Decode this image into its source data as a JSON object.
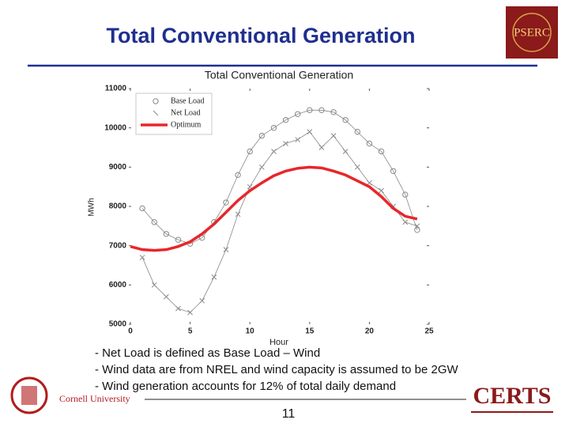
{
  "slide": {
    "title": "Total Conventional Generation",
    "bullets": [
      "- Net Load is defined as Base Load – Wind",
      "- Wind data are from NREL and wind capacity is assumed to be 2GW",
      "- Wind generation accounts for 12% of total daily demand"
    ],
    "page_number": "11",
    "logos": {
      "pserc": "PSERC",
      "cornell": "Cornell University",
      "certs": "CERTS"
    }
  },
  "chart_data": {
    "type": "line",
    "title": "Total Conventional Generation",
    "x_label": "Hour",
    "y_label": "MWh",
    "x": [
      0,
      1,
      2,
      3,
      4,
      5,
      6,
      7,
      8,
      9,
      10,
      11,
      12,
      13,
      14,
      15,
      16,
      17,
      18,
      19,
      20,
      21,
      22,
      23,
      24
    ],
    "xlim": [
      0,
      25
    ],
    "xticks": [
      0,
      5,
      10,
      15,
      20,
      25
    ],
    "ylim": [
      5000,
      11000
    ],
    "yticks": [
      5000,
      6000,
      7000,
      8000,
      9000,
      10000,
      11000
    ],
    "legend": "upper left",
    "series": [
      {
        "name": "Base Load",
        "color": "#888888",
        "marker": "circle",
        "values": [
          null,
          7950,
          7600,
          7300,
          7150,
          7050,
          7200,
          7600,
          8100,
          8800,
          9400,
          9800,
          10000,
          10200,
          10350,
          10450,
          10450,
          10400,
          10200,
          9900,
          9600,
          9400,
          8900,
          8300,
          7400
        ]
      },
      {
        "name": "Net Load",
        "color": "#888888",
        "marker": "x",
        "values": [
          null,
          6700,
          6000,
          5700,
          5400,
          5300,
          5600,
          6200,
          6900,
          7800,
          8500,
          9000,
          9400,
          9600,
          9700,
          9900,
          9500,
          9800,
          9400,
          9000,
          8600,
          8400,
          8000,
          7600,
          7500
        ]
      },
      {
        "name": "Optimum",
        "color": "#e8262a",
        "marker": "none",
        "values": [
          6980,
          6900,
          6880,
          6900,
          6980,
          7100,
          7300,
          7550,
          7850,
          8150,
          8400,
          8600,
          8780,
          8900,
          8970,
          9000,
          8980,
          8900,
          8800,
          8650,
          8500,
          8250,
          7950,
          7750,
          7680
        ]
      }
    ]
  }
}
